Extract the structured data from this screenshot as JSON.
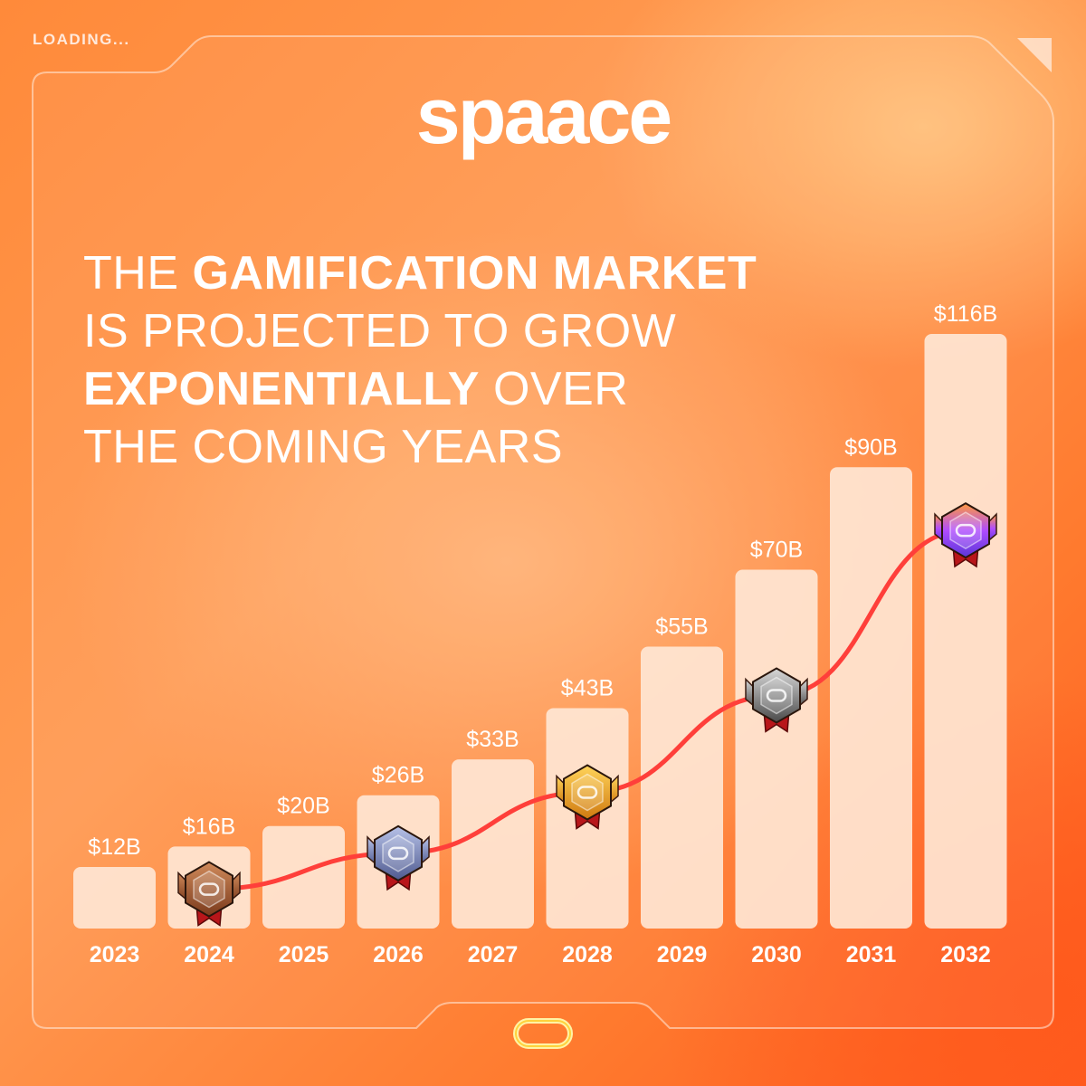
{
  "status_text": "LOADING...",
  "brand": {
    "name": "spaace"
  },
  "headline": {
    "line1_pre": "THE ",
    "line1_bold": "GAMIFICATION MARKET",
    "line2": "IS PROJECTED TO GROW",
    "line3_bold": "EXPONENTIALLY",
    "line3_post": " OVER",
    "line4": "THE COMING YEARS"
  },
  "colors": {
    "bar_fill": "#ffe6d4",
    "trend_line": "#ff3f3a",
    "text_light": "#ffffff"
  },
  "chart_data": {
    "type": "bar",
    "title": "",
    "xlabel": "",
    "ylabel": "",
    "categories": [
      "2023",
      "2024",
      "2025",
      "2026",
      "2027",
      "2028",
      "2029",
      "2030",
      "2031",
      "2032"
    ],
    "values": [
      12,
      16,
      20,
      26,
      33,
      43,
      55,
      70,
      90,
      116
    ],
    "value_labels": [
      "$12B",
      "$16B",
      "$20B",
      "$26B",
      "$33B",
      "$43B",
      "$55B",
      "$70B",
      "$90B",
      "$116B"
    ],
    "unit": "USD billions",
    "ylim": [
      0,
      120
    ],
    "grid": false,
    "legend": "none",
    "trend_line": {
      "points_at": [
        "2024",
        "2026",
        "2028",
        "2030",
        "2032"
      ],
      "badge_icons": [
        "bronze-badge-icon",
        "steel-badge-icon",
        "gold-badge-icon",
        "silver-badge-icon",
        "purple-badge-icon"
      ]
    }
  }
}
